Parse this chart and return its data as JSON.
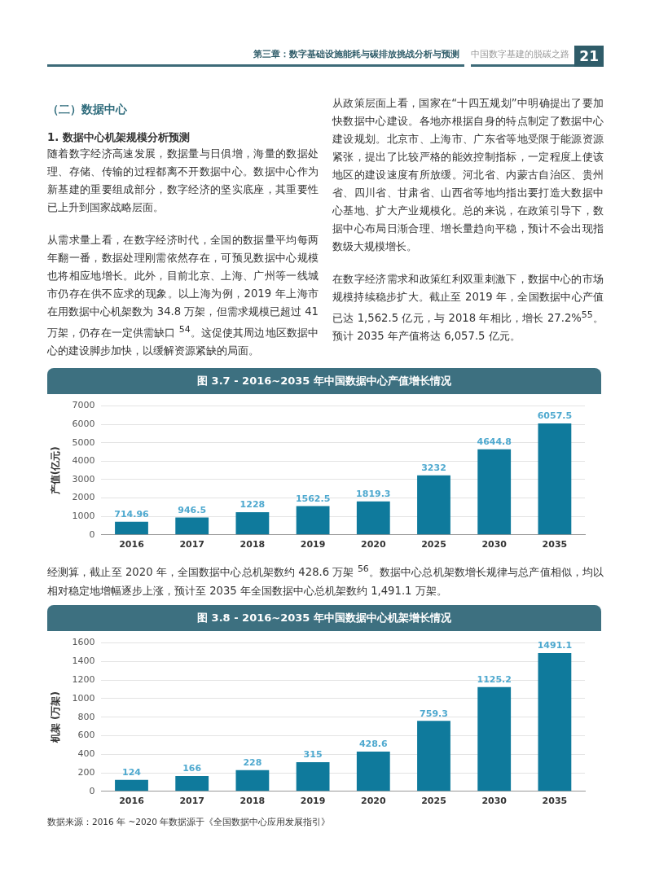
{
  "chart_data": [
    {
      "type": "bar",
      "title": "图 3.7 - 2016~2035 年中国数据中心产值增长情况",
      "ylabel": "产值(亿元)",
      "categories": [
        "2016",
        "2017",
        "2018",
        "2019",
        "2020",
        "2025",
        "2030",
        "2035"
      ],
      "values": [
        714.96,
        946.5,
        1228,
        1562.5,
        1819.3,
        3232,
        4644.8,
        6057.5
      ],
      "color": "#0f7a9c",
      "ylim": [
        0,
        7000
      ],
      "yticks": [
        0,
        1000,
        2000,
        3000,
        4000,
        5000,
        6000,
        7000
      ],
      "grid": "y",
      "data_labels": true,
      "legend": false,
      "annotations": [
        "第三章：数字基础设施能耗与碳排放挑战分析与预测",
        "中国数字基建的脱碳之路",
        "21",
        "（二）数据中心",
        "1. 数据中心机架规模分析预测",
        "随着数字经济高速发展，数据量与日俱增，海量的数据处理、存储、传输的过程都离不开数据中心。数据中心作为新基建的重要组成部分，数字经济的坚实底座，其重要性已上升到国家战略层面。",
        "从需求量上看，在数字经济时代，全国的数据量平均每两年翻一番，数据处理刚需依然存在，可预见数据中心规模也将相应地增长。此外，目前北京、上海、广州等一线城市仍存在供不应求的现象。以上海为例，2019 年上海市在用数据中心机架数为 34.8 万架，但需求规模已超过 41 万架，仍存在一定供需缺口 $^{54}$。这促使其周边地区数据中心的建设脚步加快，以缓解资源紧缺的局面。",
        "从政策层面上看，国家在“十四五规划”中明确提出了要加快数据中心建设。各地亦根据自身的特点制定了数据中心建设规划。北京市、上海市、广东省等地受限于能源资源紧张，提出了比较严格的能效控制指标，一定程度上使该地区的建设速度有所放缓。河北省、内蒙古自治区、贵州省、四川省、甘肃省、山西省等地均指出要打造大数据中心基地、扩大产业规模化。总的来说，在政策引导下，数据中心布局日渐合理、增长量趋向平稳，预计不会出现指数级大规模增长。",
        "在数字经济需求和政策红利双重刺激下，数据中心的市场规模持续稳步扩大。截止至 2019 年，全国数据中心产值已达 1,562.5 亿元，与 2018 年相比，增长 27.2%$^{55}$。预计 2035 年产值将达 6,057.5 亿元。"
      ]
    },
    {
      "type": "bar",
      "title": "图 3.8 - 2016~2035 年中国数据中心机架增长情况",
      "ylabel": "机架 (万架)",
      "categories": [
        "2016",
        "2017",
        "2018",
        "2019",
        "2020",
        "2025",
        "2030",
        "2035"
      ],
      "values": [
        124,
        166,
        228,
        315,
        428.6,
        759.3,
        1125.2,
        1491.1
      ],
      "color": "#0f7a9c",
      "ylim": [
        0,
        1600
      ],
      "yticks": [
        0,
        200,
        400,
        600,
        800,
        1000,
        1200,
        1400,
        1600
      ],
      "grid": "y",
      "data_labels": true,
      "legend": false,
      "annotations": [
        "经测算，截止至 2020 年，全国数据中心总机架数约 428.6 万架 $^{56}$。数据中心总机架数增长规律与总产值相似，均以相对稳定地增幅逐步上涨，预计至 2035 年全国数据中心总机架数约 1,491.1 万架。",
        "数据来源：2016 年 ~2020 年数据源于《全国数据中心应用发展指引》"
      ]
    }
  ]
}
